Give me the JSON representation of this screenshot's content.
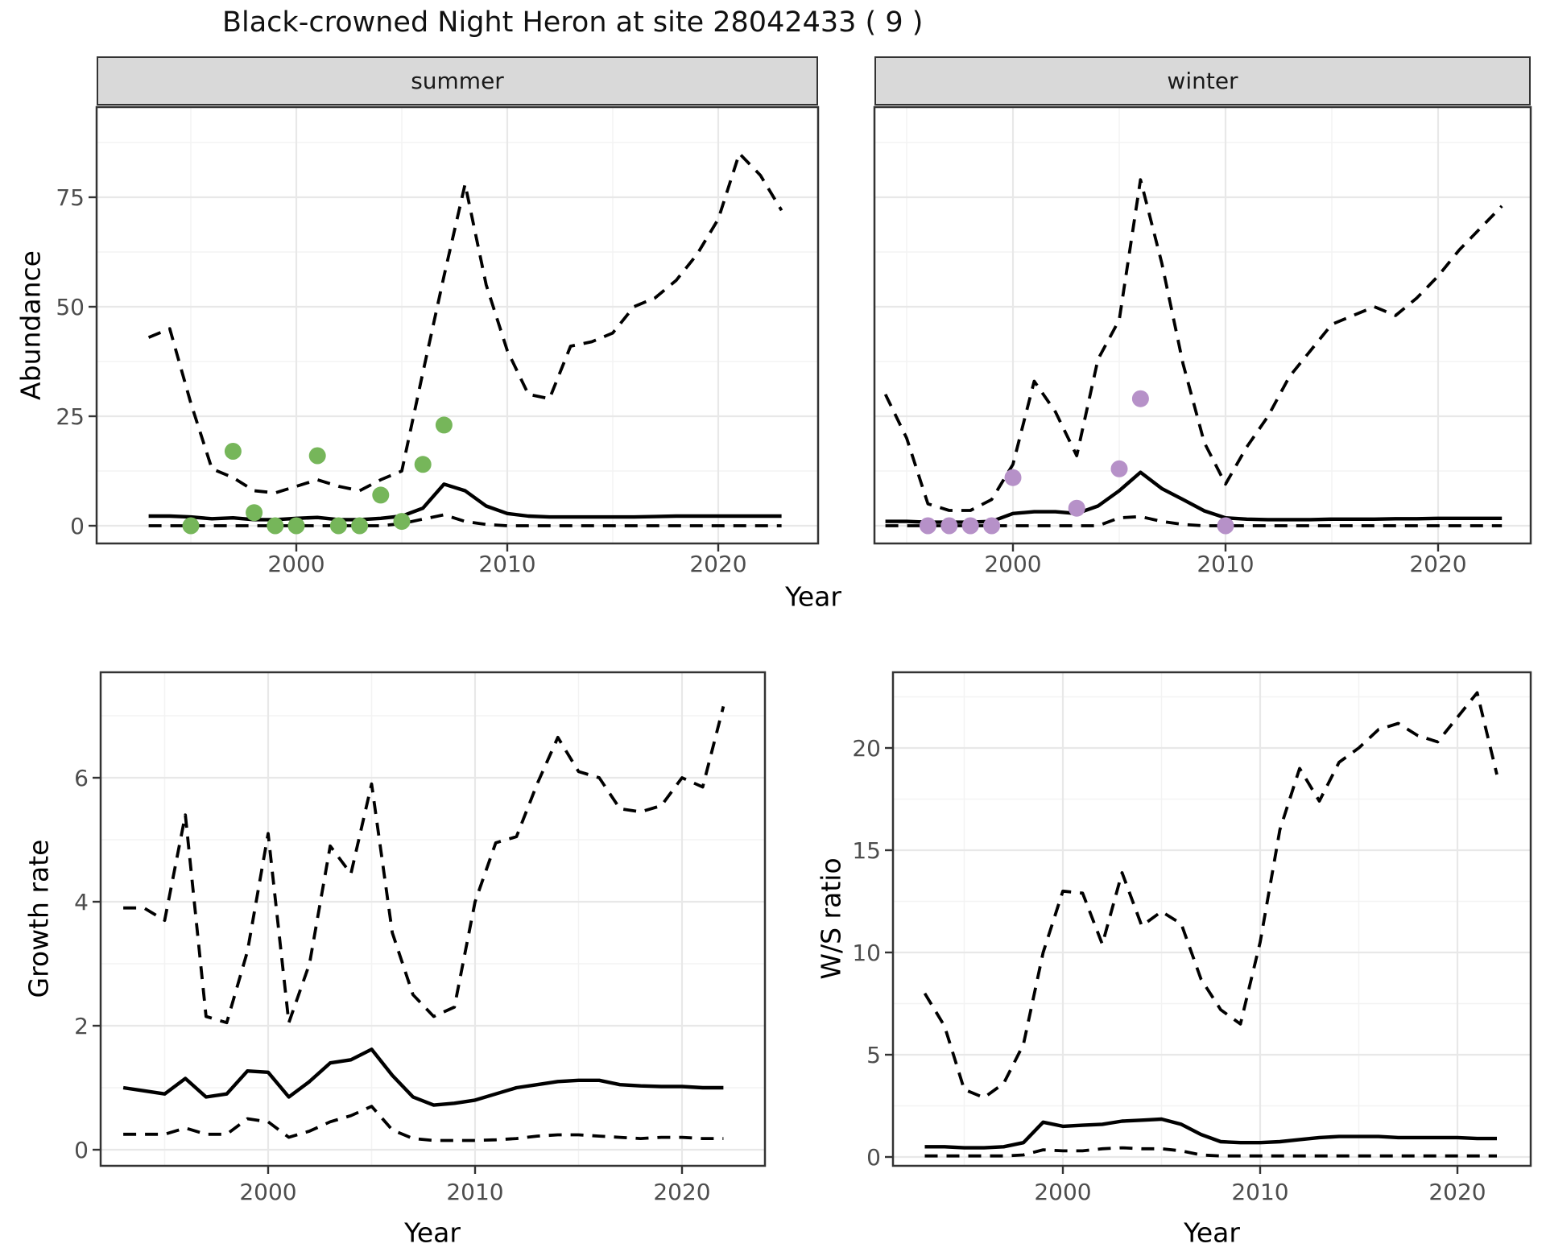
{
  "title": "Black-crowned Night Heron at site 28042433 ( 9 )",
  "colors": {
    "summer_point": "#76b65a",
    "winter_point": "#b691c8",
    "line": "#000000",
    "strip_bg": "#d9d9d9",
    "panel_border": "#333333",
    "grid_major": "#e8e8e8",
    "grid_minor": "#f3f3f3",
    "tick_text": "#4d4d4d",
    "text": "#1a1a1a"
  },
  "chart_data": {
    "type": "line",
    "x_label_top": "Year",
    "legend": "none",
    "description": "Dashed lines = 95% credible interval, solid line = model fit, dots = observed counts",
    "panels": [
      {
        "id": "summer",
        "strip": "summer",
        "ylabel": "Abundance",
        "xlabel": "Year",
        "yticks": [
          0,
          25,
          50,
          75
        ],
        "y_minor": [
          12.5,
          37.5,
          62.5,
          87.5
        ],
        "xticks": [
          2000,
          2010,
          2020
        ],
        "x_minor": [
          1995,
          2005,
          2015
        ],
        "ylim": [
          -4,
          95.5
        ],
        "start_year": 1993,
        "series": [
          {
            "name": "upper_ci",
            "style": "dashed",
            "values": [
              43,
              45,
              28,
              13,
              11,
              8,
              7.5,
              9,
              10.5,
              9,
              8,
              10.5,
              12.5,
              35,
              57,
              78,
              55,
              40,
              30,
              29,
              41,
              42,
              44,
              50,
              52,
              56,
              62,
              70,
              85,
              80,
              72
            ]
          },
          {
            "name": "fit",
            "style": "solid",
            "values": [
              2.2,
              2.2,
              2,
              1.6,
              1.8,
              1.4,
              1.4,
              1.7,
              1.9,
              1.4,
              1.4,
              1.7,
              2.2,
              4,
              9.5,
              8,
              4.5,
              2.8,
              2.2,
              2,
              2,
              2,
              2,
              2,
              2.1,
              2.2,
              2.2,
              2.2,
              2.2,
              2.2,
              2.2
            ]
          },
          {
            "name": "lower_ci",
            "style": "dashed",
            "values": [
              0,
              0,
              0,
              0,
              0,
              0,
              0,
              0,
              0,
              0,
              0,
              0,
              0.5,
              1.5,
              2.5,
              1,
              0.3,
              0,
              0,
              0,
              0,
              0,
              0,
              0,
              0,
              0,
              0,
              0,
              0,
              0,
              0
            ]
          }
        ],
        "points": {
          "name": "observed_counts",
          "color": "#76b65a",
          "data": [
            [
              1995,
              0
            ],
            [
              1997,
              17
            ],
            [
              1998,
              3
            ],
            [
              1999,
              0
            ],
            [
              2000,
              0
            ],
            [
              2001,
              16
            ],
            [
              2002,
              0
            ],
            [
              2003,
              0
            ],
            [
              2004,
              7
            ],
            [
              2005,
              1
            ],
            [
              2006,
              14
            ],
            [
              2007,
              23
            ]
          ]
        }
      },
      {
        "id": "winter",
        "strip": "winter",
        "ylabel": "",
        "xlabel": "Year",
        "yticks": [
          0,
          25,
          50,
          75
        ],
        "y_minor": [
          12.5,
          37.5,
          62.5,
          87.5
        ],
        "xticks": [
          2000,
          2010,
          2020
        ],
        "x_minor": [
          1995,
          2005,
          2015
        ],
        "ylim": [
          -4,
          95.5
        ],
        "start_year": 1994,
        "series": [
          {
            "name": "upper_ci",
            "style": "dashed",
            "values": [
              30,
              20,
              5,
              3.5,
              3.5,
              6,
              14,
              33,
              26,
              16,
              38,
              47,
              79,
              60,
              37,
              19,
              9.5,
              18,
              25,
              34,
              40,
              46,
              48,
              50,
              48,
              52,
              57,
              63,
              68,
              73
            ]
          },
          {
            "name": "fit",
            "style": "solid",
            "values": [
              1,
              1,
              0.8,
              0.8,
              0.8,
              1,
              2.8,
              3.2,
              3.2,
              2.8,
              4.5,
              8,
              12.2,
              8.5,
              6,
              3.4,
              1.8,
              1.5,
              1.4,
              1.4,
              1.4,
              1.5,
              1.5,
              1.5,
              1.6,
              1.6,
              1.7,
              1.7,
              1.7,
              1.7
            ]
          },
          {
            "name": "lower_ci",
            "style": "dashed",
            "values": [
              0,
              0,
              0,
              0,
              0,
              0,
              0,
              0,
              0,
              0,
              0,
              1.8,
              2.1,
              1,
              0.3,
              0,
              0,
              0,
              0,
              0,
              0,
              0,
              0,
              0,
              0,
              0,
              0,
              0,
              0,
              0
            ]
          }
        ],
        "points": {
          "name": "observed_counts",
          "color": "#b691c8",
          "data": [
            [
              1996,
              0
            ],
            [
              1997,
              0
            ],
            [
              1998,
              0
            ],
            [
              1999,
              0
            ],
            [
              2000,
              11
            ],
            [
              2003,
              4
            ],
            [
              2005,
              13
            ],
            [
              2006,
              29
            ],
            [
              2010,
              0
            ]
          ]
        }
      },
      {
        "id": "growth",
        "strip": null,
        "ylabel": "Growth rate",
        "xlabel": "Year",
        "yticks": [
          0,
          2,
          4,
          6
        ],
        "y_minor": [
          1,
          3,
          5,
          7
        ],
        "xticks": [
          2000,
          2010,
          2020
        ],
        "x_minor": [
          1995,
          2005,
          2015
        ],
        "ylim": [
          -0.26,
          7.7
        ],
        "start_year": 1993,
        "series": [
          {
            "name": "upper_ci",
            "style": "dashed",
            "values": [
              3.9,
              3.9,
              3.7,
              5.4,
              2.15,
              2.05,
              3.2,
              5.1,
              2.05,
              3.0,
              4.9,
              4.45,
              5.9,
              3.5,
              2.5,
              2.15,
              2.3,
              4.0,
              4.95,
              5.05,
              5.9,
              6.65,
              6.1,
              6.0,
              5.5,
              5.45,
              5.55,
              6.0,
              5.85,
              7.15
            ]
          },
          {
            "name": "fit",
            "style": "solid",
            "values": [
              1.0,
              0.95,
              0.9,
              1.15,
              0.85,
              0.9,
              1.27,
              1.25,
              0.85,
              1.1,
              1.4,
              1.45,
              1.62,
              1.2,
              0.85,
              0.72,
              0.75,
              0.8,
              0.9,
              1.0,
              1.05,
              1.1,
              1.12,
              1.12,
              1.05,
              1.03,
              1.02,
              1.02,
              1.0,
              1.0
            ]
          },
          {
            "name": "lower_ci",
            "style": "dashed",
            "values": [
              0.25,
              0.25,
              0.25,
              0.35,
              0.25,
              0.25,
              0.5,
              0.45,
              0.2,
              0.3,
              0.45,
              0.55,
              0.7,
              0.32,
              0.18,
              0.15,
              0.15,
              0.15,
              0.16,
              0.18,
              0.22,
              0.24,
              0.24,
              0.22,
              0.2,
              0.18,
              0.2,
              0.2,
              0.18,
              0.18
            ]
          }
        ],
        "points": null
      },
      {
        "id": "ws",
        "strip": null,
        "ylabel": "W/S ratio",
        "xlabel": "Year",
        "yticks": [
          0,
          5,
          10,
          15,
          20
        ],
        "y_minor": [
          2.5,
          7.5,
          12.5,
          17.5,
          22.5
        ],
        "xticks": [
          2000,
          2010,
          2020
        ],
        "x_minor": [
          1995,
          2005,
          2015
        ],
        "ylim": [
          -0.45,
          23.7
        ],
        "start_year": 1993,
        "series": [
          {
            "name": "upper_ci",
            "style": "dashed",
            "values": [
              8.0,
              6.4,
              3.3,
              2.9,
              3.6,
              5.5,
              10.0,
              13.0,
              12.9,
              10.4,
              13.9,
              11.3,
              12.0,
              11.4,
              8.7,
              7.2,
              6.5,
              10.5,
              16.0,
              19.0,
              17.4,
              19.3,
              20.0,
              20.9,
              21.2,
              20.6,
              20.3,
              21.5,
              22.7,
              18.7
            ]
          },
          {
            "name": "fit",
            "style": "solid",
            "values": [
              0.5,
              0.5,
              0.45,
              0.45,
              0.5,
              0.7,
              1.7,
              1.5,
              1.55,
              1.6,
              1.75,
              1.8,
              1.85,
              1.6,
              1.1,
              0.75,
              0.7,
              0.7,
              0.75,
              0.85,
              0.95,
              1.0,
              1.0,
              1.0,
              0.95,
              0.95,
              0.95,
              0.95,
              0.9,
              0.9
            ]
          },
          {
            "name": "lower_ci",
            "style": "dashed",
            "values": [
              0.05,
              0.05,
              0.05,
              0.05,
              0.05,
              0.1,
              0.35,
              0.3,
              0.3,
              0.4,
              0.45,
              0.4,
              0.4,
              0.3,
              0.1,
              0.05,
              0.05,
              0.05,
              0.05,
              0.05,
              0.05,
              0.05,
              0.05,
              0.05,
              0.05,
              0.05,
              0.05,
              0.05,
              0.05,
              0.05
            ]
          }
        ],
        "points": null
      }
    ]
  }
}
